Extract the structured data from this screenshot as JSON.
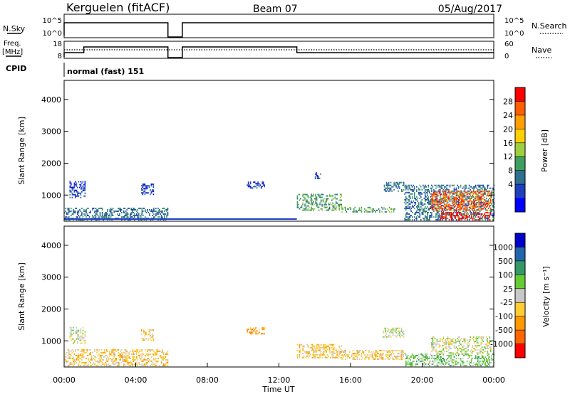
{
  "header": {
    "station": "Kerguelen (fitACF)",
    "beam": "Beam 07",
    "date": "05/Aug/2017"
  },
  "status_panel": {
    "nsky_label": "N.Sky",
    "nsky_ticks": [
      "10^5",
      "10^0"
    ],
    "nsearch_label": "N.Search",
    "nsearch_ticks": [
      "10^5",
      "10^0"
    ],
    "freq_label_1": "Freq.",
    "freq_label_2": "[MHz]",
    "freq_ticks": [
      "18",
      "8"
    ],
    "nave_label": "Nave",
    "nave_ticks": [
      "60",
      "0"
    ],
    "cpid_label": "CPID",
    "cpid_value": "normal (fast) 151"
  },
  "colors": {
    "power_scale": [
      "#0000ff",
      "#1f3fbf",
      "#2f6f8f",
      "#3f9f5f",
      "#9fcf3f",
      "#ffcf00",
      "#ff9f00",
      "#ff5f00",
      "#ff0000"
    ],
    "velocity_scale": [
      "#ff0000",
      "#ff6600",
      "#ff9900",
      "#ffcc33",
      "#c8c8c8",
      "#66cc33",
      "#339966",
      "#2266aa",
      "#0000cc"
    ]
  },
  "chart_data": [
    {
      "type": "heatmap",
      "title": "Power",
      "ylabel": "Slant Range [km]",
      "ylim": [
        180,
        4600
      ],
      "yticks": [
        "4000",
        "3000",
        "2000",
        "1000"
      ],
      "xlim": [
        0,
        24
      ],
      "colorbar_label": "Power [dB]",
      "colorbar_ticks": [
        "28",
        "24",
        "20",
        "16",
        "12",
        "8",
        "4"
      ],
      "regions": [
        {
          "t0": 0.0,
          "t1": 5.8,
          "r0": 200,
          "r1": 600,
          "level": 2
        },
        {
          "t0": 0.3,
          "t1": 1.2,
          "r0": 900,
          "r1": 1400,
          "level": 1
        },
        {
          "t0": 4.3,
          "t1": 5.0,
          "r0": 1000,
          "r1": 1350,
          "level": 1
        },
        {
          "t0": 10.2,
          "t1": 11.2,
          "r0": 1200,
          "r1": 1400,
          "level": 1
        },
        {
          "t0": 13.0,
          "t1": 15.5,
          "r0": 500,
          "r1": 1000,
          "level": 3
        },
        {
          "t0": 14.0,
          "t1": 14.3,
          "r0": 1500,
          "r1": 1700,
          "level": 1
        },
        {
          "t0": 15.5,
          "t1": 18.5,
          "r0": 450,
          "r1": 600,
          "level": 3
        },
        {
          "t0": 17.8,
          "t1": 19.0,
          "r0": 1100,
          "r1": 1400,
          "level": 2
        },
        {
          "t0": 19.0,
          "t1": 24.0,
          "r0": 200,
          "r1": 1300,
          "level": 2
        },
        {
          "t0": 20.5,
          "t1": 23.8,
          "r0": 500,
          "r1": 1100,
          "level": 7
        },
        {
          "t0": 21.0,
          "t1": 23.8,
          "r0": 200,
          "r1": 450,
          "level": 8
        }
      ]
    },
    {
      "type": "heatmap",
      "title": "Velocity",
      "ylabel": "Slant Range [km]",
      "ylim": [
        180,
        4600
      ],
      "yticks": [
        "4000",
        "3000",
        "2000",
        "1000"
      ],
      "xlim": [
        0,
        24
      ],
      "xticks": [
        "00:00",
        "04:00",
        "08:00",
        "12:00",
        "16:00",
        "20:00",
        "00:00"
      ],
      "xlabel": "Time UT",
      "colorbar_label": "Velocity [m s⁻¹]",
      "colorbar_ticks": [
        "1000",
        "500",
        "100",
        "25",
        "-25",
        "-100",
        "-500",
        "-1000"
      ],
      "regions": [
        {
          "t0": 0.0,
          "t1": 5.8,
          "r0": 200,
          "r1": 700,
          "level": 3
        },
        {
          "t0": 0.3,
          "t1": 1.2,
          "r0": 900,
          "r1": 1400,
          "level": 4
        },
        {
          "t0": 4.3,
          "t1": 5.0,
          "r0": 1000,
          "r1": 1350,
          "level": 3
        },
        {
          "t0": 10.2,
          "t1": 11.2,
          "r0": 1200,
          "r1": 1400,
          "level": 2
        },
        {
          "t0": 13.0,
          "t1": 15.5,
          "r0": 450,
          "r1": 900,
          "level": 3
        },
        {
          "t0": 15.5,
          "t1": 19.0,
          "r0": 400,
          "r1": 700,
          "level": 3
        },
        {
          "t0": 17.8,
          "t1": 19.0,
          "r0": 1100,
          "r1": 1400,
          "level": 4
        },
        {
          "t0": 19.0,
          "t1": 24.0,
          "r0": 200,
          "r1": 600,
          "level": 5
        },
        {
          "t0": 20.5,
          "t1": 23.8,
          "r0": 600,
          "r1": 1100,
          "level": 4
        }
      ]
    }
  ]
}
